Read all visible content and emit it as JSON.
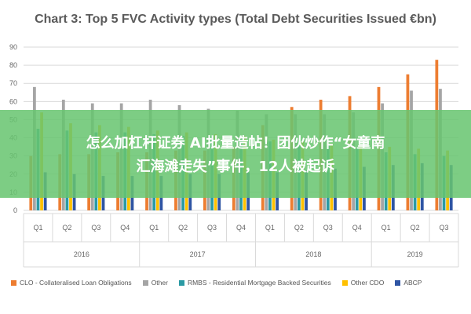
{
  "chart_data": {
    "type": "bar",
    "title": "Chart 3: Top 5 FVC Activity types (Total Debt Securities Issued €bn)",
    "categories": [
      "Q1",
      "Q2",
      "Q3",
      "Q4",
      "Q1",
      "Q2",
      "Q3",
      "Q4",
      "Q1",
      "Q2",
      "Q3",
      "Q4",
      "Q1",
      "Q2",
      "Q3"
    ],
    "years": [
      {
        "label": "2016",
        "count": 4
      },
      {
        "label": "2017",
        "count": 4
      },
      {
        "label": "2018",
        "count": 4
      },
      {
        "label": "2019",
        "count": 3
      }
    ],
    "ylim": [
      0,
      90
    ],
    "yticks": [
      "0",
      "10",
      "20",
      "30",
      "40",
      "50",
      "60",
      "70",
      "80",
      "90"
    ],
    "grid": true,
    "legend_position": "bottom",
    "series": [
      {
        "name": "CLO - Collateralised Loan Obligations",
        "color": "#ed7d31",
        "values": [
          30,
          31,
          31,
          32,
          32,
          33,
          33,
          35,
          47,
          57,
          61,
          63,
          68,
          75,
          83
        ]
      },
      {
        "name": "Other",
        "color": "#a5a5a5",
        "values": [
          68,
          61,
          59,
          59,
          61,
          58,
          56,
          55,
          53,
          53,
          53,
          54,
          59,
          66,
          67
        ]
      },
      {
        "name": "RMBS - Residential Mortgage Backed Securities",
        "color": "#2b9aa4",
        "values": [
          45,
          44,
          43,
          43,
          42,
          41,
          41,
          40,
          38,
          37,
          36,
          34,
          32,
          31,
          30
        ]
      },
      {
        "name": "Other CDO",
        "color": "#ffc000",
        "values": [
          54,
          48,
          47,
          46,
          44,
          43,
          42,
          41,
          39,
          38,
          37,
          36,
          35,
          34,
          33
        ]
      },
      {
        "name": "ABCP",
        "color": "#2f55a4",
        "values": [
          21,
          20,
          19,
          19,
          19,
          20,
          20,
          21,
          21,
          22,
          23,
          24,
          25,
          26,
          25
        ]
      }
    ]
  },
  "overlay": {
    "line1": "怎么加杠杆证券 AI批量造帖！团伙炒作“女童南",
    "line2": "汇海滩走失”事件，12人被起诉"
  }
}
